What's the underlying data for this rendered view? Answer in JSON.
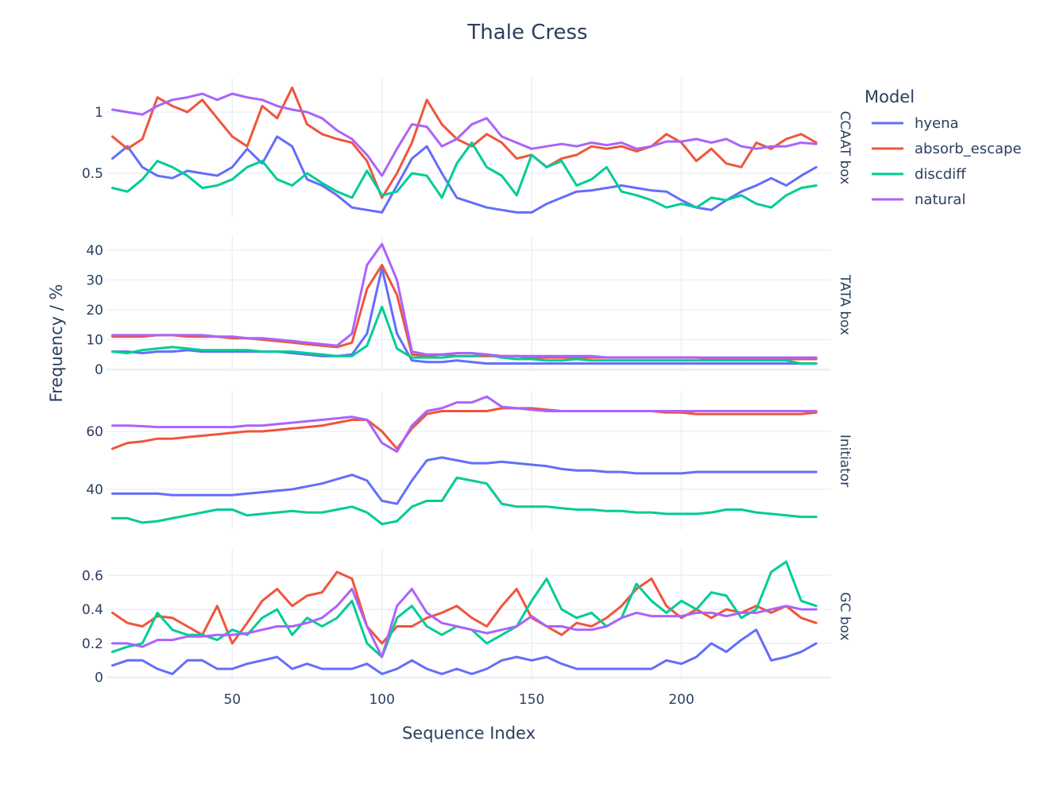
{
  "chart_data": {
    "type": "line",
    "title": "Thale Cress",
    "xlabel": "Sequence Index",
    "ylabel": "Frequency / %",
    "xlim": [
      8,
      250
    ],
    "x_ticks": [
      50,
      100,
      150,
      200
    ],
    "legend": {
      "title": "Model",
      "position": "right"
    },
    "colors": {
      "hyena": "#636efa",
      "absorb_escape": "#ef553b",
      "discdiff": "#00cc96",
      "natural": "#ab63fa"
    },
    "x": [
      10,
      15,
      20,
      25,
      30,
      35,
      40,
      45,
      50,
      55,
      60,
      65,
      70,
      75,
      80,
      85,
      90,
      95,
      100,
      105,
      110,
      115,
      120,
      125,
      130,
      135,
      140,
      145,
      150,
      155,
      160,
      165,
      170,
      175,
      180,
      185,
      190,
      195,
      200,
      205,
      210,
      215,
      220,
      225,
      230,
      235,
      240,
      245
    ],
    "panels": [
      {
        "label": "CCAAT box",
        "ylim": [
          0.15,
          1.28
        ],
        "y_ticks": [
          0.5,
          1
        ],
        "y_tick_labels": [
          "0.5",
          "1"
        ],
        "series": [
          {
            "name": "hyena",
            "values": [
              0.62,
              0.72,
              0.55,
              0.48,
              0.46,
              0.52,
              0.5,
              0.48,
              0.55,
              0.7,
              0.58,
              0.8,
              0.72,
              0.45,
              0.4,
              0.32,
              0.22,
              0.2,
              0.18,
              0.4,
              0.62,
              0.72,
              0.5,
              0.3,
              0.26,
              0.22,
              0.2,
              0.18,
              0.18,
              0.25,
              0.3,
              0.35,
              0.36,
              0.38,
              0.4,
              0.38,
              0.36,
              0.35,
              0.28,
              0.22,
              0.2,
              0.28,
              0.35,
              0.4,
              0.46,
              0.4,
              0.48,
              0.55
            ]
          },
          {
            "name": "absorb_escape",
            "values": [
              0.8,
              0.7,
              0.78,
              1.12,
              1.05,
              1.0,
              1.1,
              0.95,
              0.8,
              0.72,
              1.05,
              0.95,
              1.2,
              0.9,
              0.82,
              0.78,
              0.75,
              0.6,
              0.3,
              0.5,
              0.75,
              1.1,
              0.9,
              0.78,
              0.72,
              0.82,
              0.75,
              0.62,
              0.65,
              0.55,
              0.62,
              0.65,
              0.72,
              0.7,
              0.72,
              0.68,
              0.72,
              0.82,
              0.75,
              0.6,
              0.7,
              0.58,
              0.55,
              0.75,
              0.7,
              0.78,
              0.82,
              0.75
            ]
          },
          {
            "name": "discdiff",
            "values": [
              0.38,
              0.35,
              0.45,
              0.6,
              0.55,
              0.48,
              0.38,
              0.4,
              0.45,
              0.55,
              0.6,
              0.45,
              0.4,
              0.5,
              0.42,
              0.35,
              0.3,
              0.52,
              0.32,
              0.35,
              0.5,
              0.48,
              0.3,
              0.58,
              0.75,
              0.55,
              0.48,
              0.32,
              0.65,
              0.55,
              0.6,
              0.4,
              0.45,
              0.55,
              0.35,
              0.32,
              0.28,
              0.22,
              0.25,
              0.22,
              0.3,
              0.28,
              0.32,
              0.25,
              0.22,
              0.32,
              0.38,
              0.4
            ]
          },
          {
            "name": "natural",
            "values": [
              1.02,
              1.0,
              0.98,
              1.05,
              1.1,
              1.12,
              1.15,
              1.1,
              1.15,
              1.12,
              1.1,
              1.05,
              1.02,
              1.0,
              0.95,
              0.85,
              0.78,
              0.65,
              0.48,
              0.7,
              0.9,
              0.88,
              0.72,
              0.78,
              0.9,
              0.95,
              0.8,
              0.75,
              0.7,
              0.72,
              0.74,
              0.72,
              0.75,
              0.73,
              0.75,
              0.7,
              0.72,
              0.76,
              0.76,
              0.78,
              0.75,
              0.78,
              0.72,
              0.7,
              0.72,
              0.72,
              0.75,
              0.74
            ]
          }
        ]
      },
      {
        "label": "TATA box",
        "ylim": [
          -0.5,
          45
        ],
        "y_ticks": [
          0,
          10,
          20,
          30,
          40
        ],
        "y_tick_labels": [
          "0",
          "10",
          "20",
          "30",
          "40"
        ],
        "series": [
          {
            "name": "hyena",
            "values": [
              6,
              6,
              5.5,
              6,
              6,
              6.5,
              6,
              6,
              6,
              6,
              6,
              6,
              5.5,
              5,
              4.5,
              4.5,
              5,
              12,
              34,
              12,
              3,
              2.5,
              2.5,
              3,
              2.5,
              2,
              2,
              2,
              2,
              2,
              2,
              2,
              2,
              2,
              2,
              2,
              2,
              2,
              2,
              2,
              2,
              2,
              2,
              2,
              2,
              2,
              2,
              2
            ]
          },
          {
            "name": "absorb_escape",
            "values": [
              11,
              11,
              11,
              11.5,
              11.5,
              11,
              11,
              11,
              10.5,
              10.5,
              10,
              9.5,
              9,
              8.5,
              8,
              7.5,
              9,
              27,
              35,
              25,
              5,
              4.5,
              5,
              4.5,
              4.5,
              4.5,
              4.5,
              4.5,
              4,
              4,
              4,
              4,
              4,
              4,
              4,
              4,
              4,
              4,
              4,
              4,
              3.5,
              3.5,
              3.5,
              3.5,
              3.5,
              3.5,
              3.5,
              3.5
            ]
          },
          {
            "name": "discdiff",
            "values": [
              6,
              5.5,
              6.5,
              7,
              7.5,
              7,
              6.5,
              6.5,
              6.5,
              6.5,
              6,
              6,
              6,
              5.5,
              5,
              4.5,
              4.5,
              8,
              21,
              7,
              4,
              4,
              4,
              4.5,
              4.5,
              5,
              4,
              3.5,
              3.5,
              3,
              3,
              3.5,
              3,
              3,
              3,
              3,
              3,
              3,
              3,
              3,
              3,
              3,
              3,
              3,
              3,
              3,
              2,
              2
            ]
          },
          {
            "name": "natural",
            "values": [
              11.5,
              11.5,
              11.5,
              11.5,
              11.5,
              11.5,
              11.5,
              11,
              11,
              10.5,
              10.5,
              10,
              9.5,
              9,
              8.5,
              8,
              12,
              35,
              42,
              30,
              6,
              5,
              5,
              5.5,
              5.5,
              5,
              4.5,
              4.5,
              4.5,
              4.5,
              4.5,
              4.5,
              4.5,
              4,
              4,
              4,
              4,
              4,
              4,
              4,
              4,
              4,
              4,
              4,
              4,
              4,
              4,
              4
            ]
          }
        ]
      },
      {
        "label": "Initiator",
        "ylim": [
          26,
          74
        ],
        "y_ticks": [
          40,
          60
        ],
        "y_tick_labels": [
          "40",
          "60"
        ],
        "series": [
          {
            "name": "hyena",
            "values": [
              38.5,
              38.5,
              38.5,
              38.5,
              38,
              38,
              38,
              38,
              38,
              38.5,
              39,
              39.5,
              40,
              41,
              42,
              43.5,
              45,
              43,
              36,
              35,
              43,
              50,
              51,
              50,
              49,
              49,
              49.5,
              49,
              48.5,
              48,
              47,
              46.5,
              46.5,
              46,
              46,
              45.5,
              45.5,
              45.5,
              45.5,
              46,
              46,
              46,
              46,
              46,
              46,
              46,
              46,
              46
            ]
          },
          {
            "name": "absorb_escape",
            "values": [
              54,
              56,
              56.5,
              57.5,
              57.5,
              58,
              58.5,
              59,
              59.5,
              60,
              60,
              60.5,
              61,
              61.5,
              62,
              63,
              64,
              64,
              60,
              54,
              61,
              66,
              67,
              67,
              67,
              67,
              68,
              68,
              68,
              67.5,
              67,
              67,
              67,
              67,
              67,
              67,
              67,
              66.5,
              66.5,
              66,
              66,
              66,
              66,
              66,
              66,
              66,
              66,
              66.5
            ]
          },
          {
            "name": "discdiff",
            "values": [
              30,
              30,
              28.5,
              29,
              30,
              31,
              32,
              33,
              33,
              31,
              31.5,
              32,
              32.5,
              32,
              32,
              33,
              34,
              32,
              28,
              29,
              34,
              36,
              36,
              44,
              43,
              42,
              35,
              34,
              34,
              34,
              33.5,
              33,
              33,
              32.5,
              32.5,
              32,
              32,
              31.5,
              31.5,
              31.5,
              32,
              33,
              33,
              32,
              31.5,
              31,
              30.5,
              30.5
            ]
          },
          {
            "name": "natural",
            "values": [
              62,
              62,
              61.8,
              61.5,
              61.5,
              61.5,
              61.5,
              61.5,
              61.5,
              62,
              62,
              62.5,
              63,
              63.5,
              64,
              64.5,
              65,
              64,
              56,
              53,
              62,
              67,
              68,
              70,
              70,
              72,
              68.5,
              68,
              67.5,
              67,
              67,
              67,
              67,
              67,
              67,
              67,
              67,
              67,
              67,
              67,
              67,
              67,
              67,
              67,
              67,
              67,
              67,
              67
            ]
          }
        ]
      },
      {
        "label": "GC box",
        "ylim": [
          -0.02,
          0.76
        ],
        "y_ticks": [
          0,
          0.2,
          0.4,
          0.6
        ],
        "y_tick_labels": [
          "0",
          "0.2",
          "0.4",
          "0.6"
        ],
        "series": [
          {
            "name": "hyena",
            "values": [
              0.07,
              0.1,
              0.1,
              0.05,
              0.02,
              0.1,
              0.1,
              0.05,
              0.05,
              0.08,
              0.1,
              0.12,
              0.05,
              0.08,
              0.05,
              0.05,
              0.05,
              0.08,
              0.02,
              0.05,
              0.1,
              0.05,
              0.02,
              0.05,
              0.02,
              0.05,
              0.1,
              0.12,
              0.1,
              0.12,
              0.08,
              0.05,
              0.05,
              0.05,
              0.05,
              0.05,
              0.05,
              0.1,
              0.08,
              0.12,
              0.2,
              0.15,
              0.22,
              0.28,
              0.1,
              0.12,
              0.15,
              0.2
            ]
          },
          {
            "name": "absorb_escape",
            "values": [
              0.38,
              0.32,
              0.3,
              0.36,
              0.35,
              0.3,
              0.25,
              0.42,
              0.2,
              0.32,
              0.45,
              0.52,
              0.42,
              0.48,
              0.5,
              0.62,
              0.58,
              0.3,
              0.2,
              0.3,
              0.3,
              0.35,
              0.38,
              0.42,
              0.35,
              0.3,
              0.42,
              0.52,
              0.35,
              0.3,
              0.25,
              0.32,
              0.3,
              0.35,
              0.42,
              0.52,
              0.58,
              0.42,
              0.35,
              0.4,
              0.35,
              0.4,
              0.38,
              0.42,
              0.38,
              0.42,
              0.35,
              0.32
            ]
          },
          {
            "name": "discdiff",
            "values": [
              0.15,
              0.18,
              0.2,
              0.38,
              0.28,
              0.25,
              0.25,
              0.22,
              0.28,
              0.25,
              0.35,
              0.4,
              0.25,
              0.35,
              0.3,
              0.35,
              0.45,
              0.2,
              0.12,
              0.35,
              0.42,
              0.3,
              0.25,
              0.3,
              0.28,
              0.2,
              0.25,
              0.3,
              0.45,
              0.58,
              0.4,
              0.35,
              0.38,
              0.3,
              0.35,
              0.55,
              0.45,
              0.38,
              0.45,
              0.4,
              0.5,
              0.48,
              0.35,
              0.4,
              0.62,
              0.68,
              0.45,
              0.42
            ]
          },
          {
            "name": "natural",
            "values": [
              0.2,
              0.2,
              0.18,
              0.22,
              0.22,
              0.24,
              0.24,
              0.25,
              0.25,
              0.26,
              0.28,
              0.3,
              0.3,
              0.32,
              0.35,
              0.42,
              0.52,
              0.3,
              0.12,
              0.42,
              0.52,
              0.38,
              0.32,
              0.3,
              0.28,
              0.26,
              0.28,
              0.3,
              0.36,
              0.3,
              0.3,
              0.28,
              0.28,
              0.3,
              0.35,
              0.38,
              0.36,
              0.36,
              0.36,
              0.38,
              0.38,
              0.36,
              0.38,
              0.38,
              0.4,
              0.42,
              0.4,
              0.4
            ]
          }
        ]
      }
    ]
  }
}
